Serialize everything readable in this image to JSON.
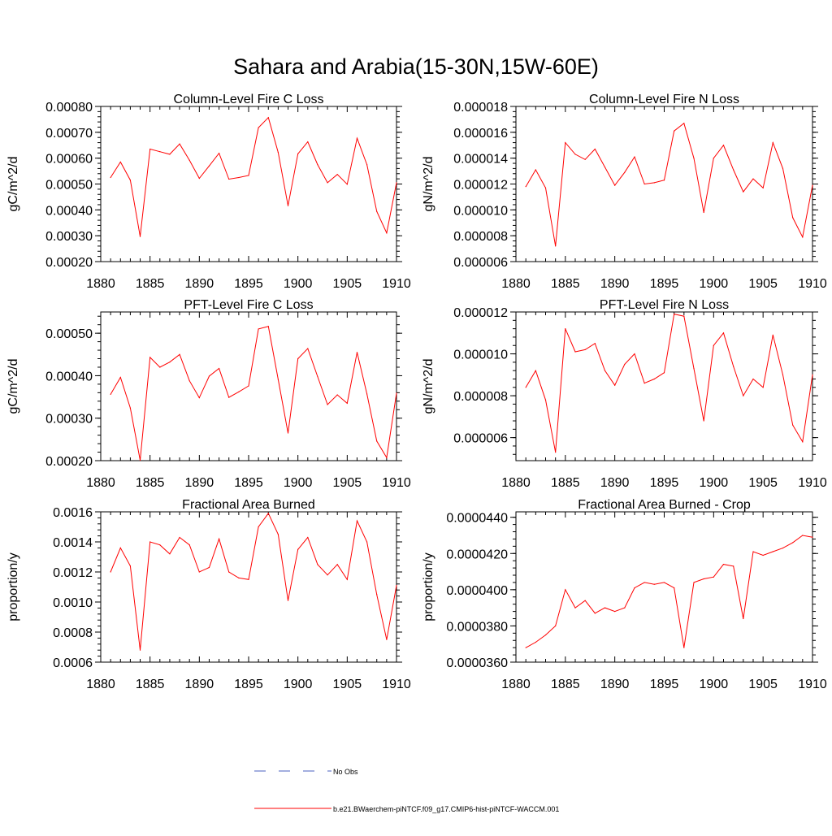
{
  "title": "Sahara and Arabia(15-30N,15W-60E)",
  "colors": {
    "model": "#ff0000",
    "obs": "#4a5fbf"
  },
  "legend": {
    "obs_label": "No Obs",
    "model_label": "b.e21.BWaerchem-piNTCF.f09_g17.CMIP6-hist-piNTCF-WACCM.001"
  },
  "chart_data": [
    {
      "type": "line",
      "title": "Column-Level Fire C Loss",
      "ylabel": "gC/m^2/d",
      "xlim": [
        1880,
        1910
      ],
      "ylim": [
        0.0002,
        0.0008
      ],
      "xticks": [
        "1880",
        "1885",
        "1890",
        "1895",
        "1900",
        "1905",
        "1910"
      ],
      "yticks": [
        "0.00020",
        "0.00030",
        "0.00040",
        "0.00050",
        "0.00060",
        "0.00070",
        "0.00080"
      ],
      "x": [
        1881,
        1882,
        1883,
        1884,
        1885,
        1886,
        1887,
        1888,
        1889,
        1890,
        1891,
        1892,
        1893,
        1894,
        1895,
        1896,
        1897,
        1898,
        1899,
        1900,
        1901,
        1902,
        1903,
        1904,
        1905,
        1906,
        1907,
        1908,
        1909,
        1910
      ],
      "series": [
        {
          "values": [
            0.000525,
            0.000585,
            0.000515,
            0.000297,
            0.000635,
            0.000625,
            0.000615,
            0.000655,
            0.000592,
            0.000522,
            0.00057,
            0.000619,
            0.000519,
            0.000525,
            0.000533,
            0.000718,
            0.000757,
            0.000622,
            0.000416,
            0.000617,
            0.000663,
            0.000575,
            0.000505,
            0.000537,
            0.000499,
            0.000677,
            0.000575,
            0.000394,
            0.000311,
            0.000505
          ]
        }
      ]
    },
    {
      "type": "line",
      "title": "Column-Level Fire N Loss",
      "ylabel": "gN/m^2/d",
      "xlim": [
        1880,
        1910
      ],
      "ylim": [
        6e-06,
        1.8e-05
      ],
      "xticks": [
        "1880",
        "1885",
        "1890",
        "1895",
        "1900",
        "1905",
        "1910"
      ],
      "yticks": [
        "0.000006",
        "0.000008",
        "0.000010",
        "0.000012",
        "0.000014",
        "0.000016",
        "0.000018"
      ],
      "x": [
        1881,
        1882,
        1883,
        1884,
        1885,
        1886,
        1887,
        1888,
        1889,
        1890,
        1891,
        1892,
        1893,
        1894,
        1895,
        1896,
        1897,
        1898,
        1899,
        1900,
        1901,
        1902,
        1903,
        1904,
        1905,
        1906,
        1907,
        1908,
        1909,
        1910
      ],
      "series": [
        {
          "values": [
            1.18e-05,
            1.31e-05,
            1.17e-05,
            7.2e-06,
            1.52e-05,
            1.43e-05,
            1.39e-05,
            1.47e-05,
            1.33e-05,
            1.19e-05,
            1.29e-05,
            1.41e-05,
            1.2e-05,
            1.21e-05,
            1.23e-05,
            1.61e-05,
            1.67e-05,
            1.4e-05,
            9.8e-06,
            1.4e-05,
            1.5e-05,
            1.31e-05,
            1.14e-05,
            1.24e-05,
            1.17e-05,
            1.52e-05,
            1.32e-05,
            9.4e-06,
            7.9e-06,
            1.19e-05
          ]
        }
      ]
    },
    {
      "type": "line",
      "title": "PFT-Level Fire C Loss",
      "ylabel": "gC/m^2/d",
      "xlim": [
        1880,
        1910
      ],
      "ylim": [
        0.0002,
        0.00055
      ],
      "xticks": [
        "1880",
        "1885",
        "1890",
        "1895",
        "1900",
        "1905",
        "1910"
      ],
      "yticks": [
        "0.00020",
        "0.00030",
        "0.00040",
        "0.00050"
      ],
      "yticks_at": [
        0.0002,
        0.0003,
        0.0004,
        0.0005
      ],
      "x": [
        1881,
        1882,
        1883,
        1884,
        1885,
        1886,
        1887,
        1888,
        1889,
        1890,
        1891,
        1892,
        1893,
        1894,
        1895,
        1896,
        1897,
        1898,
        1899,
        1900,
        1901,
        1902,
        1903,
        1904,
        1905,
        1906,
        1907,
        1908,
        1909,
        1910
      ],
      "series": [
        {
          "values": [
            0.000356,
            0.000396,
            0.000324,
            0.000201,
            0.000443,
            0.00042,
            0.000432,
            0.00045,
            0.000388,
            0.000348,
            0.000399,
            0.000417,
            0.000349,
            0.000362,
            0.000376,
            0.00051,
            0.000516,
            0.000391,
            0.000265,
            0.00044,
            0.000464,
            0.000398,
            0.000332,
            0.000355,
            0.000335,
            0.000455,
            0.000357,
            0.000246,
            0.000207,
            0.000359
          ]
        }
      ]
    },
    {
      "type": "line",
      "title": "PFT-Level Fire N Loss",
      "ylabel": "gN/m^2/d",
      "xlim": [
        1880,
        1910
      ],
      "ylim": [
        4.9e-06,
        1.2e-05
      ],
      "xticks": [
        "1880",
        "1885",
        "1890",
        "1895",
        "1900",
        "1905",
        "1910"
      ],
      "yticks": [
        "0.000006",
        "0.000008",
        "0.000010",
        "0.000012"
      ],
      "yticks_at": [
        6e-06,
        8e-06,
        1e-05,
        1.2e-05
      ],
      "x": [
        1881,
        1882,
        1883,
        1884,
        1885,
        1886,
        1887,
        1888,
        1889,
        1890,
        1891,
        1892,
        1893,
        1894,
        1895,
        1896,
        1897,
        1898,
        1899,
        1900,
        1901,
        1902,
        1903,
        1904,
        1905,
        1906,
        1907,
        1908,
        1909,
        1910
      ],
      "series": [
        {
          "values": [
            8.4e-06,
            9.2e-06,
            7.8e-06,
            5.3e-06,
            1.12e-05,
            1.01e-05,
            1.02e-05,
            1.05e-05,
            9.2e-06,
            8.5e-06,
            9.5e-06,
            1e-05,
            8.6e-06,
            8.8e-06,
            9.1e-06,
            1.19e-05,
            1.18e-05,
            9.3e-06,
            6.8e-06,
            1.04e-05,
            1.1e-05,
            9.4e-06,
            8e-06,
            8.8e-06,
            8.4e-06,
            1.09e-05,
            9e-06,
            6.6e-06,
            5.8e-06,
            9e-06
          ]
        }
      ]
    },
    {
      "type": "line",
      "title": "Fractional Area Burned",
      "ylabel": "proportion/y",
      "xlim": [
        1880,
        1910
      ],
      "ylim": [
        0.0006,
        0.0016
      ],
      "xticks": [
        "1880",
        "1885",
        "1890",
        "1895",
        "1900",
        "1905",
        "1910"
      ],
      "yticks": [
        "0.0006",
        "0.0008",
        "0.0010",
        "0.0012",
        "0.0014",
        "0.0016"
      ],
      "x": [
        1881,
        1882,
        1883,
        1884,
        1885,
        1886,
        1887,
        1888,
        1889,
        1890,
        1891,
        1892,
        1893,
        1894,
        1895,
        1896,
        1897,
        1898,
        1899,
        1900,
        1901,
        1902,
        1903,
        1904,
        1905,
        1906,
        1907,
        1908,
        1909,
        1910
      ],
      "series": [
        {
          "values": [
            0.0012,
            0.00136,
            0.00124,
            0.00068,
            0.0014,
            0.00138,
            0.00132,
            0.00143,
            0.00138,
            0.0012,
            0.00123,
            0.00142,
            0.0012,
            0.00116,
            0.00115,
            0.0015,
            0.00159,
            0.00145,
            0.00101,
            0.00135,
            0.00143,
            0.00125,
            0.00118,
            0.00125,
            0.00115,
            0.00154,
            0.0014,
            0.00105,
            0.00075,
            0.00111
          ]
        }
      ]
    },
    {
      "type": "line",
      "title": "Fractional Area Burned - Crop",
      "ylabel": "proportion/y",
      "xlim": [
        1880,
        1910
      ],
      "ylim": [
        3.6e-05,
        4.43e-05
      ],
      "xticks": [
        "1880",
        "1885",
        "1890",
        "1895",
        "1900",
        "1905",
        "1910"
      ],
      "yticks": [
        "0.0000360",
        "0.0000380",
        "0.0000400",
        "0.0000420",
        "0.0000440"
      ],
      "yticks_at": [
        3.6e-05,
        3.8e-05,
        4e-05,
        4.2e-05,
        4.4e-05
      ],
      "x": [
        1881,
        1882,
        1883,
        1884,
        1885,
        1886,
        1887,
        1888,
        1889,
        1890,
        1891,
        1892,
        1893,
        1894,
        1895,
        1896,
        1897,
        1898,
        1899,
        1900,
        1901,
        1902,
        1903,
        1904,
        1905,
        1906,
        1907,
        1908,
        1909,
        1910
      ],
      "series": [
        {
          "values": [
            3.68e-05,
            3.71e-05,
            3.75e-05,
            3.8e-05,
            4e-05,
            3.9e-05,
            3.94e-05,
            3.87e-05,
            3.9e-05,
            3.88e-05,
            3.9e-05,
            4.01e-05,
            4.04e-05,
            4.03e-05,
            4.04e-05,
            4.01e-05,
            3.68e-05,
            4.04e-05,
            4.06e-05,
            4.07e-05,
            4.14e-05,
            4.13e-05,
            3.84e-05,
            4.21e-05,
            4.19e-05,
            4.21e-05,
            4.23e-05,
            4.26e-05,
            4.3e-05,
            4.29e-05
          ]
        }
      ]
    }
  ]
}
